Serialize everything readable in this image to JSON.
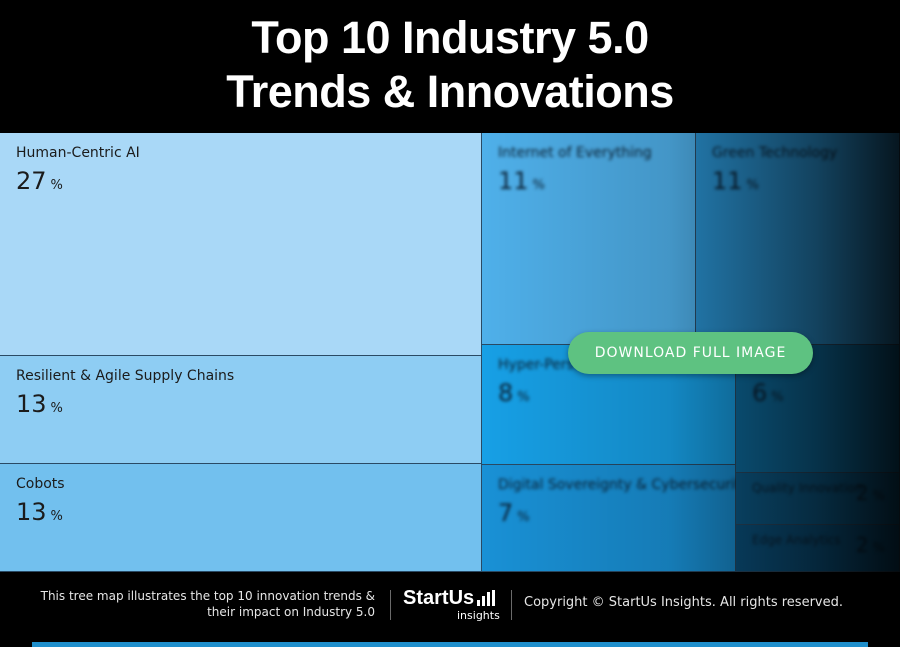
{
  "title": {
    "line1": "Top 10 Industry 5.0",
    "line2": "Trends & Innovations"
  },
  "chart_data": {
    "type": "treemap",
    "title": "Top 10 Industry 5.0 Trends & Innovations",
    "unit": "%",
    "items": [
      {
        "label": "Human-Centric AI",
        "value": 27,
        "color": "#a9d8f7"
      },
      {
        "label": "Resilient & Agile Supply Chains",
        "value": 13,
        "color": "#8ecdf3"
      },
      {
        "label": "Cobots",
        "value": 13,
        "color": "#72c0ee"
      },
      {
        "label": "Internet of Everything",
        "value": 11,
        "color": "#4fb0ea"
      },
      {
        "label": "Green Technology",
        "value": 11,
        "color": "#2a93d2"
      },
      {
        "label": "Hyper-Pers...",
        "value": 8,
        "color": "#17a0e6"
      },
      {
        "label": "",
        "value": 6,
        "color": "#0e6fa3"
      },
      {
        "label": "Digital Sovereignty & Cybersecurity",
        "value": 7,
        "color": "#1991d6"
      },
      {
        "label": "Quality Innovation",
        "value": 2,
        "color": "#0d5e8d"
      },
      {
        "label": "Edge Analytics",
        "value": 2,
        "color": "#0b5583"
      }
    ]
  },
  "download_button": {
    "label": "DOWNLOAD FULL IMAGE",
    "color": "#5ec281"
  },
  "footer": {
    "caption_line1": "This tree map illustrates the top 10 innovation trends &",
    "caption_line2": "their impact on Industry 5.0",
    "logo_brand": "StartUs",
    "logo_sub": "insights",
    "copyright": "Copyright © StartUs Insights. All rights reserved."
  },
  "accent_color": "#1f8fcc"
}
